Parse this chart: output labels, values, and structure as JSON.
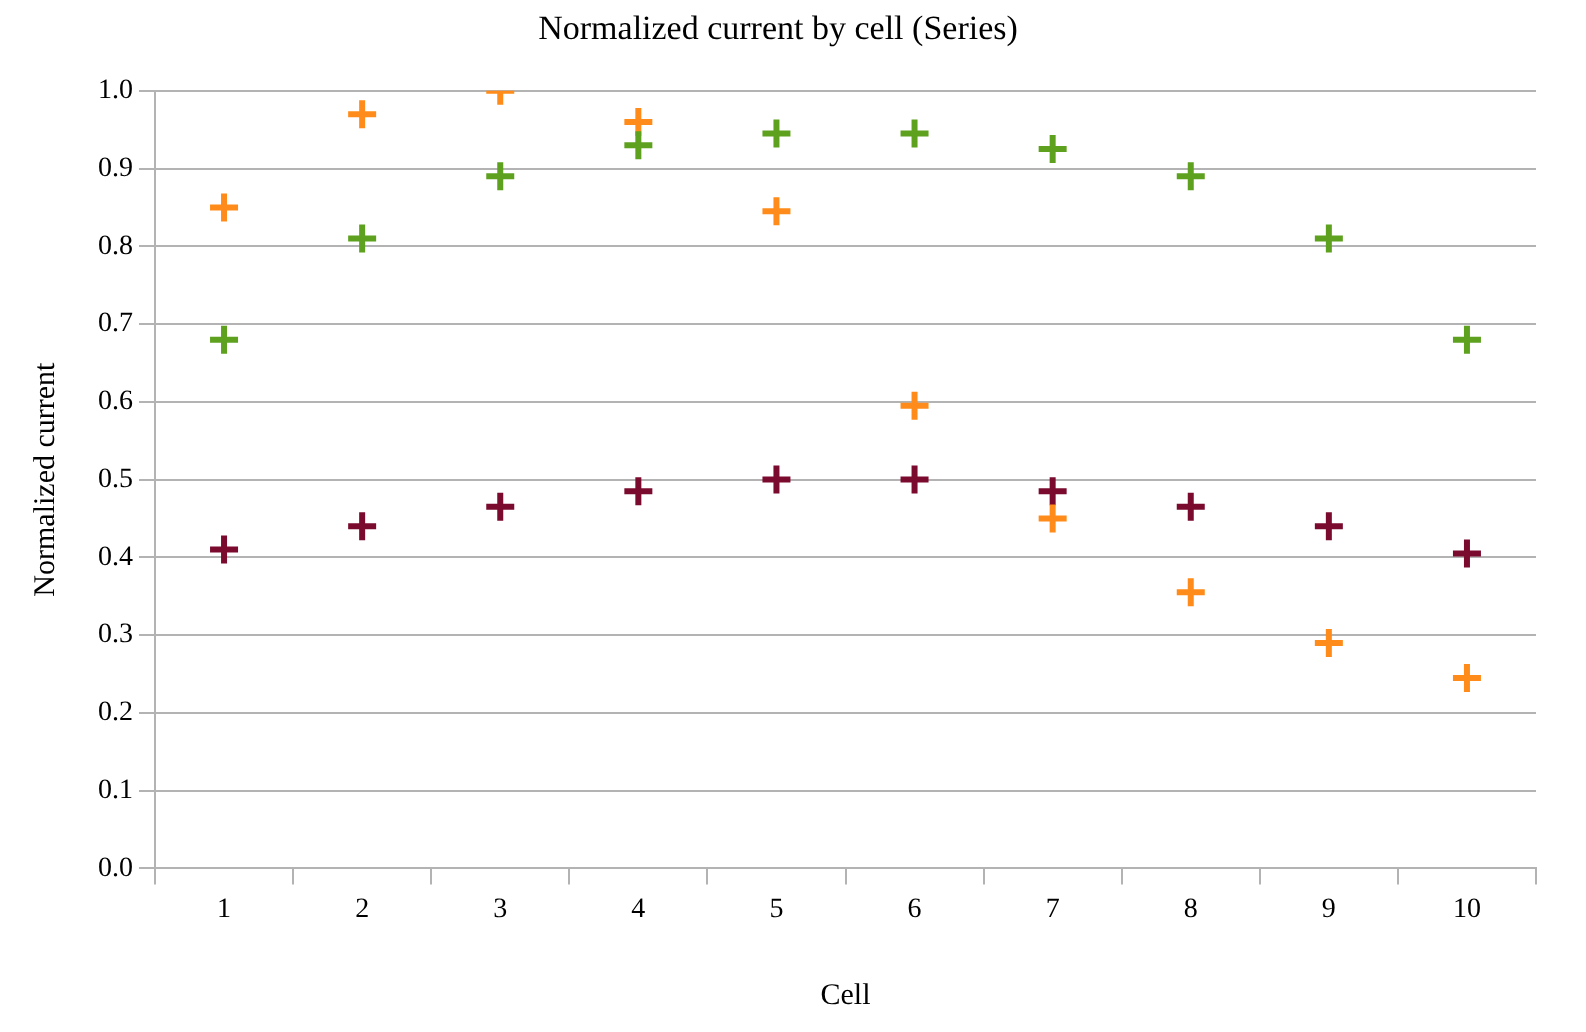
{
  "chart_data": {
    "type": "scatter",
    "title": "Normalized current by cell (Series)",
    "xlabel": "Cell",
    "ylabel": "Normalized current",
    "categories": [
      "1",
      "2",
      "3",
      "4",
      "5",
      "6",
      "7",
      "8",
      "9",
      "10"
    ],
    "series": [
      {
        "color": "#5ea11f",
        "values": [
          0.68,
          0.81,
          0.89,
          0.93,
          0.945,
          0.945,
          0.925,
          0.89,
          0.81,
          0.68
        ]
      },
      {
        "color": "#ff8c1a",
        "values": [
          0.85,
          0.97,
          1.0,
          0.96,
          0.845,
          0.595,
          0.45,
          0.355,
          0.29,
          0.245
        ]
      },
      {
        "color": "#7a0b2e",
        "values": [
          0.41,
          0.44,
          0.465,
          0.485,
          0.5,
          0.5,
          0.485,
          0.465,
          0.44,
          0.405
        ]
      }
    ],
    "ylim": [
      0,
      1
    ],
    "yticks": [
      {
        "value": 0,
        "label": "0.0"
      },
      {
        "value": 0.1,
        "label": "0.1"
      },
      {
        "value": 0.2,
        "label": "0.2"
      },
      {
        "value": 0.3,
        "label": "0.3"
      },
      {
        "value": 0.4,
        "label": "0.4"
      },
      {
        "value": 0.5,
        "label": "0.5"
      },
      {
        "value": 0.6,
        "label": "0.6"
      },
      {
        "value": 0.7,
        "label": "0.7"
      },
      {
        "value": 0.8,
        "label": "0.8"
      },
      {
        "value": 0.9,
        "label": "0.9"
      },
      {
        "value": 1,
        "label": "1.0"
      }
    ],
    "grid": "y",
    "legend": false,
    "marker": "cross"
  }
}
